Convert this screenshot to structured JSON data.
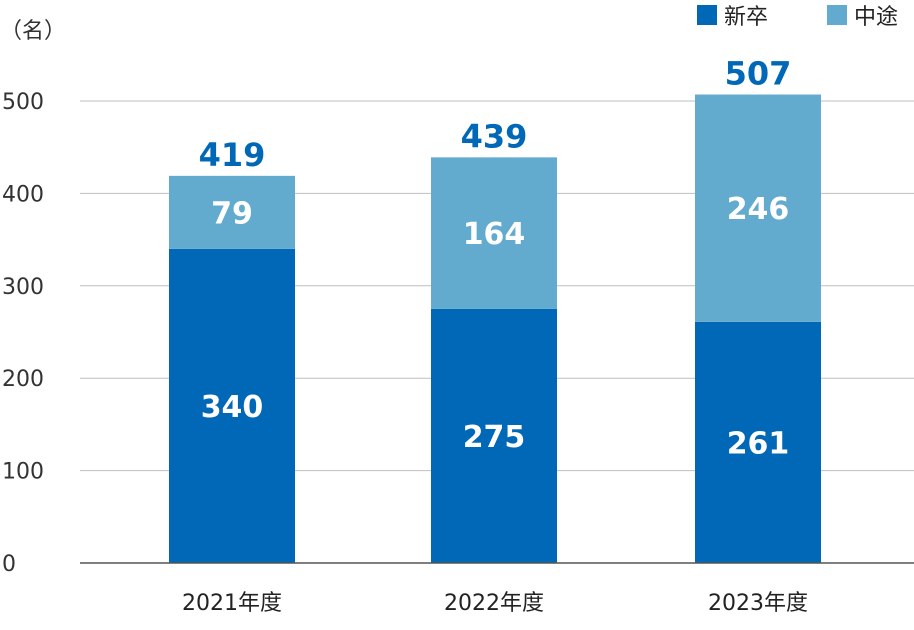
{
  "chart_data": {
    "type": "bar",
    "stacked": true,
    "unit_label": "（名）",
    "categories": [
      "2021年度",
      "2022年度",
      "2023年度"
    ],
    "series": [
      {
        "name": "新卒",
        "values": [
          340,
          275,
          261
        ],
        "color": "#0068b7"
      },
      {
        "name": "中途",
        "values": [
          79,
          164,
          246
        ],
        "color": "#62abce"
      }
    ],
    "totals": [
      419,
      439,
      507
    ],
    "total_color": "#0068b7",
    "ylim": [
      0,
      500
    ],
    "yticks": [
      0,
      100,
      200,
      300,
      400,
      500
    ],
    "grid": true,
    "legend_position": "top-right"
  }
}
